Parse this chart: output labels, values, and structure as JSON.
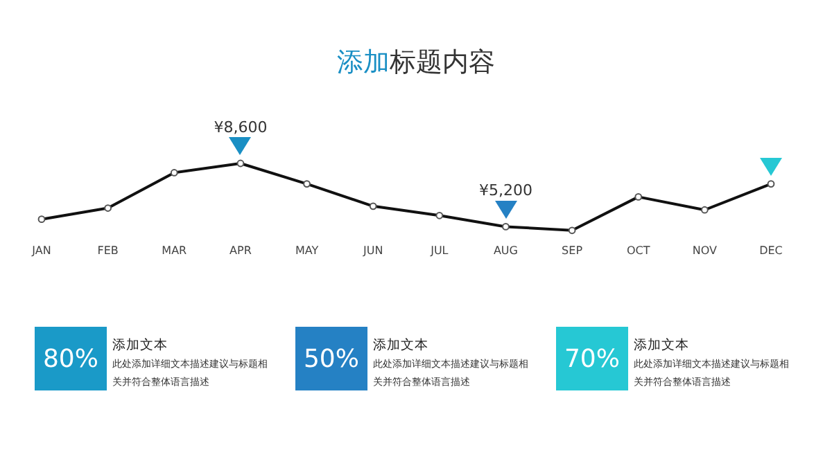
{
  "chart_data": [
    {
      "type": "line",
      "title": "添加标题内容",
      "categories": [
        "JAN",
        "FEB",
        "MAR",
        "APR",
        "MAY",
        "JUN",
        "JUL",
        "AUG",
        "SEP",
        "OCT",
        "NOV",
        "DEC"
      ],
      "series": [
        {
          "color": "#111111",
          "values": [
            5600,
            6200,
            8100,
            8600,
            7500,
            6300,
            5800,
            5200,
            5000,
            6800,
            6100,
            7500
          ],
          "value_labels": [
            null,
            null,
            null,
            "¥8,600",
            null,
            null,
            null,
            "¥5,200",
            null,
            null,
            null,
            null
          ]
        }
      ],
      "tick_labels": "x",
      "grid": false,
      "legend": false,
      "marker": "circle",
      "line_style": "solid"
    },
    {
      "type": "other",
      "categories": [
        "添加文本",
        "添加文本",
        "添加文本"
      ],
      "value_labels": [
        "80%",
        "50%",
        "70%"
      ],
      "colors": [
        "#1a9ac8",
        "#2581c4",
        "#26c8d4"
      ],
      "annotations": [
        "此处添加详细文本描述建议与标题相关并符合整体语言描述",
        "此处添加详细文本描述建议与标题相关并符合整体语言描述",
        "此处添加详细文本描述建议与标题相关并符合整体语言描述"
      ]
    }
  ]
}
